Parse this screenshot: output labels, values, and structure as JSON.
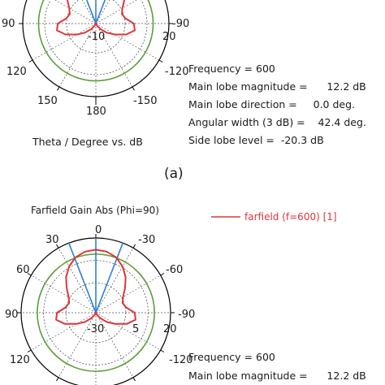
{
  "caption_a": "(a)",
  "chart_data": [
    {
      "type": "polar",
      "title": "",
      "xlabel": "Theta / Degree vs. dB",
      "angle_tick_labels": [
        "90",
        "120",
        "150",
        "180",
        "-150",
        "-120",
        "-90"
      ],
      "radial_tick_labels": [
        "-10",
        "20"
      ],
      "info": [
        "Frequency = 600",
        "Main lobe magnitude =      12.2 dB",
        "Main lobe direction =     0.0 deg.",
        "Angular width (3 dB) =    42.4 deg.",
        "Side lobe level =  -20.3 dB"
      ],
      "series": [
        {
          "name": "farfield (f=600) [1]",
          "color": "#e0353a",
          "theta_deg": [
            0,
            10,
            20,
            30,
            40,
            50,
            60,
            70,
            80,
            90,
            100,
            110,
            120,
            130,
            140,
            150,
            160,
            170,
            180,
            -170,
            -160,
            -150,
            -140,
            -130,
            -120,
            -110,
            -100,
            -90,
            -80,
            -70,
            -60,
            -50,
            -40,
            -30,
            -20,
            -10
          ],
          "gain_db": [
            12.2,
            11.5,
            9.5,
            5.8,
            1.0,
            -4.5,
            -9.0,
            -11.0,
            -9.5,
            -4.0,
            -3.0,
            -8.0,
            -15.0,
            -20.3,
            -25.0,
            -28.0,
            -30.0,
            -30.0,
            -30.0,
            -30.0,
            -30.0,
            -28.0,
            -25.0,
            -20.3,
            -15.0,
            -8.0,
            -3.0,
            -4.0,
            -9.5,
            -11.0,
            -9.0,
            -4.5,
            1.0,
            5.8,
            9.5,
            11.5
          ]
        }
      ],
      "main_lobe_direction_deg": 0,
      "half_power_beamwidth_deg": 42.4,
      "rlim": [
        -30,
        20
      ],
      "three_db_circle_db": 9.2,
      "colors": {
        "curve": "#e0353a",
        "beam": "#2f7fd6",
        "circle": "#5a9e3a",
        "grid": "#000000"
      }
    },
    {
      "type": "polar",
      "title": "Farfield Gain Abs (Phi=90)",
      "xlabel": "",
      "angle_tick_labels": [
        "0",
        "30",
        "-30",
        "60",
        "-60",
        "90",
        "-90",
        "120",
        "-120"
      ],
      "radial_tick_labels": [
        "-30",
        "5",
        "20"
      ],
      "legend": [
        "farfield (f=600) [1]"
      ],
      "legend_position": "top-right",
      "info": [
        "Frequency = 600",
        "Main lobe magnitude =      12.2 dB"
      ],
      "series": [
        {
          "name": "farfield (f=600) [1]",
          "color": "#e0353a",
          "theta_deg": [
            0,
            10,
            20,
            30,
            40,
            50,
            60,
            70,
            80,
            90,
            100,
            110,
            120,
            130,
            140,
            150,
            160,
            170,
            180,
            -170,
            -160,
            -150,
            -140,
            -130,
            -120,
            -110,
            -100,
            -90,
            -80,
            -70,
            -60,
            -50,
            -40,
            -30,
            -20,
            -10
          ],
          "gain_db": [
            12.2,
            11.5,
            9.5,
            5.8,
            1.0,
            -4.5,
            -9.0,
            -11.0,
            -9.5,
            -4.0,
            -3.0,
            -8.0,
            -15.0,
            -20.3,
            -25.0,
            -28.0,
            -30.0,
            -30.0,
            -30.0,
            -30.0,
            -30.0,
            -28.0,
            -25.0,
            -20.3,
            -15.0,
            -8.0,
            -3.0,
            -4.0,
            -9.5,
            -11.0,
            -9.0,
            -4.5,
            1.0,
            5.8,
            9.5,
            11.5
          ]
        }
      ],
      "main_lobe_direction_deg": 0,
      "half_power_beamwidth_deg": 42.4,
      "rlim": [
        -30,
        20
      ],
      "three_db_circle_db": 9.2,
      "colors": {
        "curve": "#e0353a",
        "beam": "#2f7fd6",
        "circle": "#5a9e3a",
        "grid": "#000000"
      }
    }
  ]
}
